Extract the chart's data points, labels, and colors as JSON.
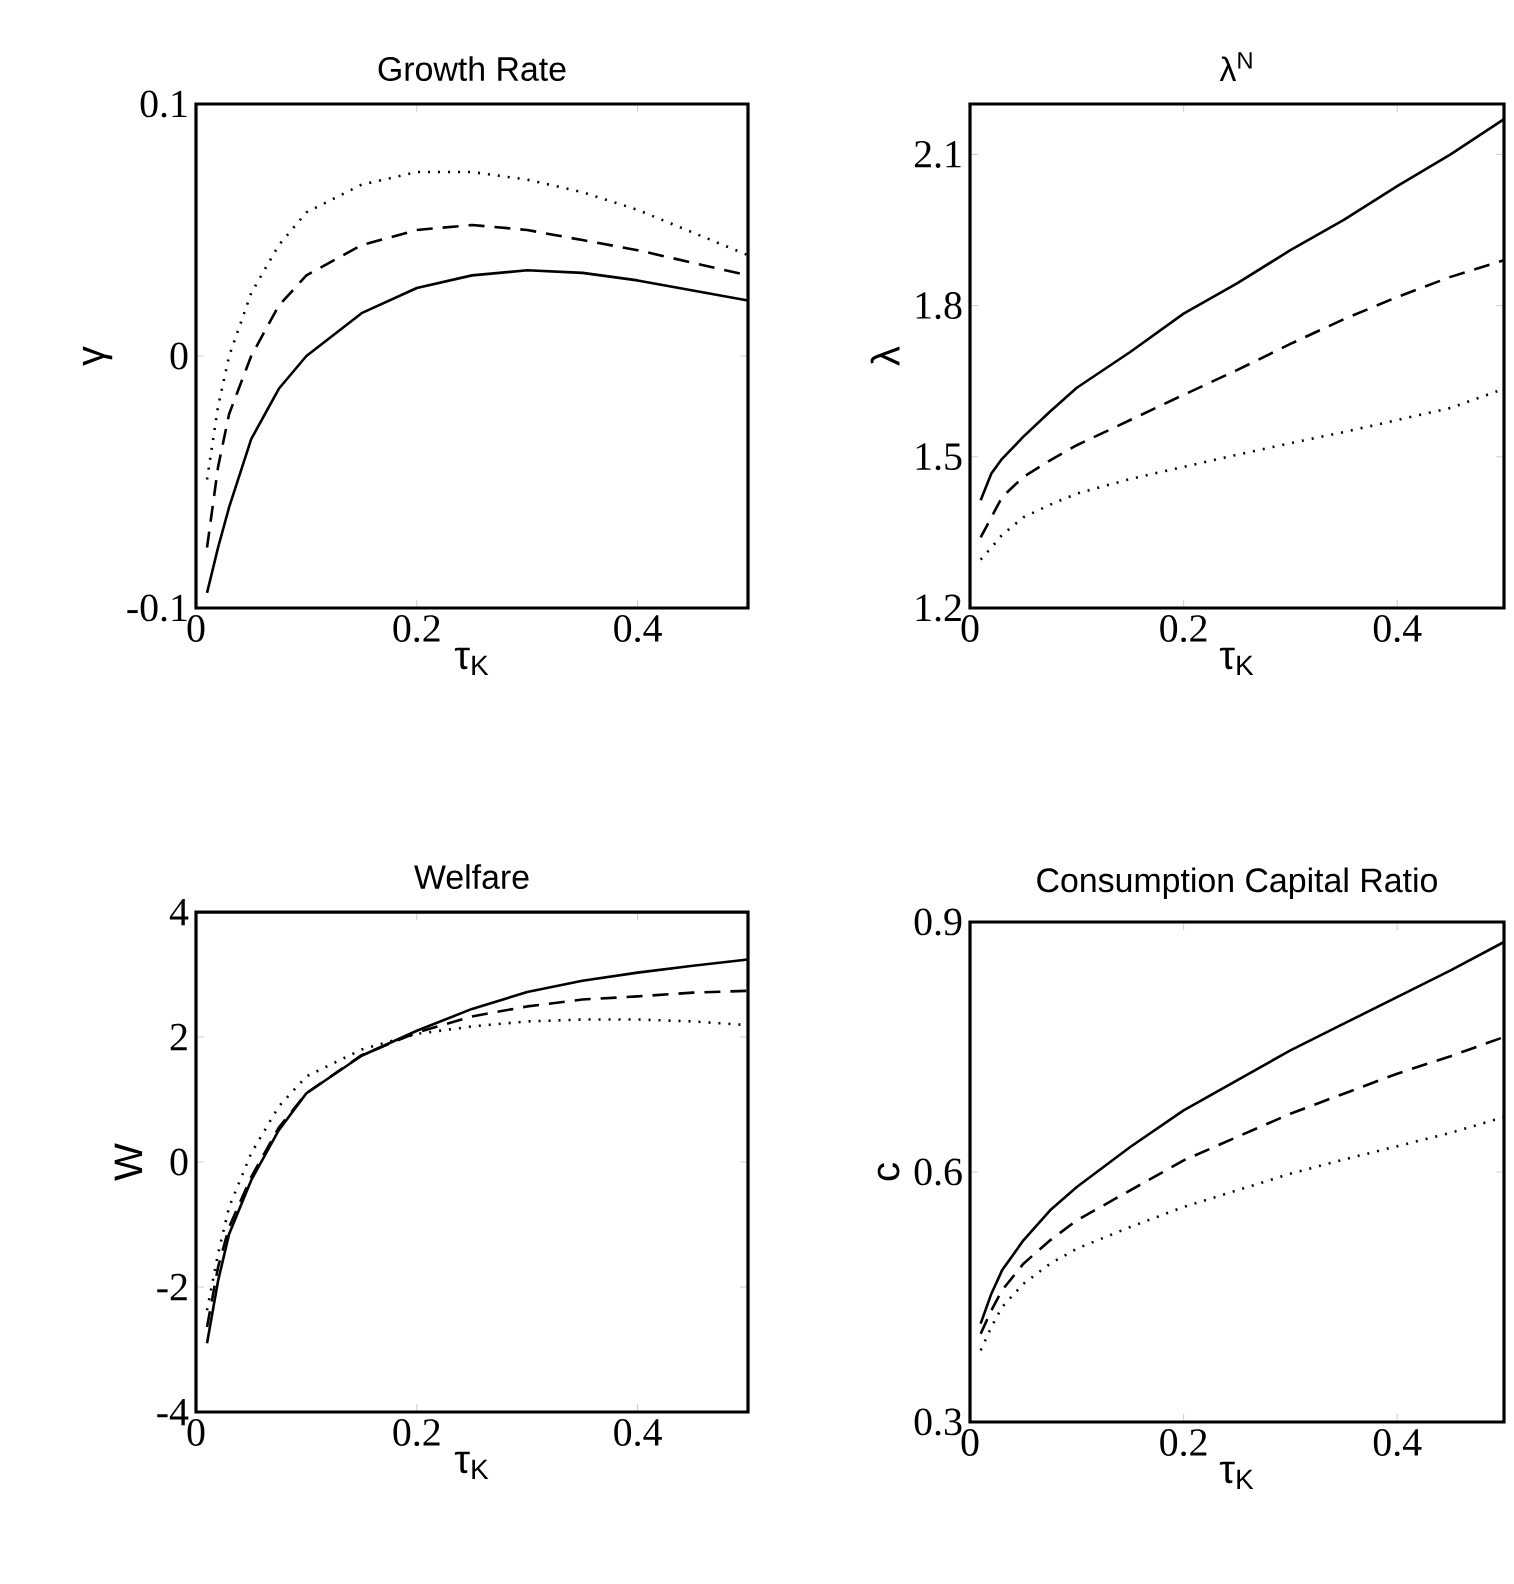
{
  "chart_data": [
    {
      "type": "line",
      "title": "Growth Rate",
      "xlabel": "τ$_{K}$",
      "ylabel": "γ",
      "x": [
        0.01,
        0.02,
        0.03,
        0.05,
        0.075,
        0.1,
        0.15,
        0.2,
        0.25,
        0.3,
        0.35,
        0.4,
        0.45,
        0.5
      ],
      "xlim": [
        0,
        0.5
      ],
      "xticks": [
        0,
        0.2,
        0.4
      ],
      "ylim": [
        -0.1,
        0.1
      ],
      "yticks": [
        -0.1,
        0,
        0.1
      ],
      "series": [
        {
          "color": "#000000",
          "line_style": "solid",
          "values": [
            -0.094,
            -0.076,
            -0.06,
            -0.033,
            -0.013,
            0.0,
            0.017,
            0.027,
            0.032,
            0.034,
            0.033,
            0.03,
            0.026,
            0.022
          ]
        },
        {
          "color": "#000000",
          "line_style": "dashed",
          "values": [
            -0.076,
            -0.044,
            -0.023,
            0.0,
            0.02,
            0.032,
            0.044,
            0.05,
            0.052,
            0.05,
            0.046,
            0.042,
            0.037,
            0.032
          ]
        },
        {
          "color": "#000000",
          "line_style": "dotted",
          "values": [
            -0.049,
            -0.02,
            0.0,
            0.025,
            0.044,
            0.057,
            0.068,
            0.073,
            0.073,
            0.07,
            0.065,
            0.058,
            0.049,
            0.04
          ]
        }
      ]
    },
    {
      "type": "line",
      "title": "λ$^{N}$",
      "xlabel": "τ$_{K}$",
      "ylabel": "λ",
      "x": [
        0.01,
        0.02,
        0.03,
        0.05,
        0.075,
        0.1,
        0.15,
        0.2,
        0.25,
        0.3,
        0.35,
        0.4,
        0.45,
        0.5
      ],
      "xlim": [
        0,
        0.5
      ],
      "xticks": [
        0,
        0.2,
        0.4
      ],
      "ylim": [
        1.2,
        2.2
      ],
      "yticks": [
        1.2,
        1.5,
        1.8,
        2.1
      ],
      "series": [
        {
          "color": "#000000",
          "line_style": "solid",
          "values": [
            1.414,
            1.467,
            1.496,
            1.54,
            1.59,
            1.637,
            1.708,
            1.784,
            1.844,
            1.91,
            1.97,
            2.037,
            2.1,
            2.17
          ]
        },
        {
          "color": "#000000",
          "line_style": "dashed",
          "values": [
            1.34,
            1.38,
            1.42,
            1.46,
            1.493,
            1.523,
            1.573,
            1.623,
            1.672,
            1.724,
            1.773,
            1.817,
            1.857,
            1.89
          ]
        },
        {
          "color": "#000000",
          "line_style": "dotted",
          "values": [
            1.296,
            1.32,
            1.345,
            1.38,
            1.405,
            1.427,
            1.456,
            1.48,
            1.504,
            1.527,
            1.549,
            1.573,
            1.597,
            1.635
          ]
        }
      ]
    },
    {
      "type": "line",
      "title": "Welfare",
      "xlabel": "τ$_{K}$",
      "ylabel": "W",
      "x": [
        0.01,
        0.02,
        0.03,
        0.05,
        0.075,
        0.1,
        0.15,
        0.2,
        0.25,
        0.3,
        0.35,
        0.4,
        0.45,
        0.5
      ],
      "xlim": [
        0,
        0.5
      ],
      "xticks": [
        0,
        0.2,
        0.4
      ],
      "ylim": [
        -4,
        4
      ],
      "yticks": [
        -4,
        -2,
        0,
        2,
        4
      ],
      "series": [
        {
          "color": "#000000",
          "line_style": "solid",
          "values": [
            -2.9,
            -1.9,
            -1.15,
            -0.29,
            0.51,
            1.1,
            1.7,
            2.1,
            2.45,
            2.72,
            2.9,
            3.03,
            3.14,
            3.24
          ]
        },
        {
          "color": "#000000",
          "line_style": "dashed",
          "values": [
            -2.64,
            -1.68,
            -1.04,
            -0.24,
            0.55,
            1.1,
            1.71,
            2.07,
            2.33,
            2.49,
            2.6,
            2.65,
            2.71,
            2.74
          ]
        },
        {
          "color": "#000000",
          "line_style": "dotted",
          "values": [
            -2.37,
            -1.47,
            -0.72,
            0.14,
            0.89,
            1.37,
            1.8,
            2.05,
            2.17,
            2.25,
            2.28,
            2.28,
            2.25,
            2.19
          ]
        }
      ]
    },
    {
      "type": "line",
      "title": "Consumption Capital Ratio",
      "xlabel": "τ$_{K}$",
      "ylabel": "c",
      "x": [
        0.01,
        0.02,
        0.03,
        0.05,
        0.075,
        0.1,
        0.15,
        0.2,
        0.25,
        0.3,
        0.35,
        0.4,
        0.45,
        0.5
      ],
      "xlim": [
        0,
        0.5
      ],
      "xticks": [
        0,
        0.2,
        0.4
      ],
      "ylim": [
        0.3,
        0.9
      ],
      "yticks": [
        0.3,
        0.6,
        0.9
      ],
      "series": [
        {
          "color": "#000000",
          "line_style": "solid",
          "values": [
            0.418,
            0.454,
            0.482,
            0.518,
            0.554,
            0.582,
            0.63,
            0.674,
            0.71,
            0.746,
            0.778,
            0.81,
            0.842,
            0.876
          ]
        },
        {
          "color": "#000000",
          "line_style": "dashed",
          "values": [
            0.406,
            0.434,
            0.458,
            0.49,
            0.518,
            0.542,
            0.578,
            0.614,
            0.642,
            0.67,
            0.694,
            0.718,
            0.739,
            0.762
          ]
        },
        {
          "color": "#000000",
          "line_style": "dotted",
          "values": [
            0.386,
            0.414,
            0.438,
            0.466,
            0.49,
            0.508,
            0.534,
            0.558,
            0.578,
            0.598,
            0.615,
            0.631,
            0.647,
            0.666
          ]
        }
      ]
    }
  ]
}
